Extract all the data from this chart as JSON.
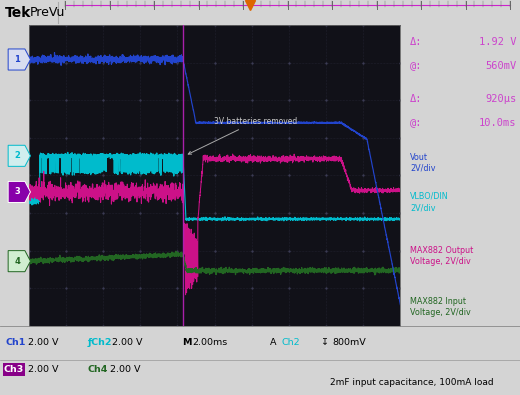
{
  "ch1_color": "#2244cc",
  "ch2_color": "#00bbcc",
  "ch3_color": "#cc1188",
  "ch4_color": "#226622",
  "trig_color": "#aa00aa",
  "orange_color": "#dd6600",
  "meas_color": "#cc44cc",
  "ch1_label": "Vout\n2V/div",
  "ch2_label": "VLBO/DIN\n2V/div",
  "ch3_label": "MAX882 Output\nVoltage, 2V/div",
  "ch4_label": "MAX882 Input\nVoltage, 2V/div",
  "bottom_caption": "2mF input capacitance, 100mA load",
  "delta_v": "1.92 V",
  "at_v": "560mV",
  "delta_t": "920μs",
  "at_t": "10.0ms",
  "plot_bg": "#111118",
  "fig_bg": "#d4d4d4",
  "sidebar_bg": "#111118",
  "bottom_bg": "#e8e8e8",
  "scope_border": "#888888"
}
